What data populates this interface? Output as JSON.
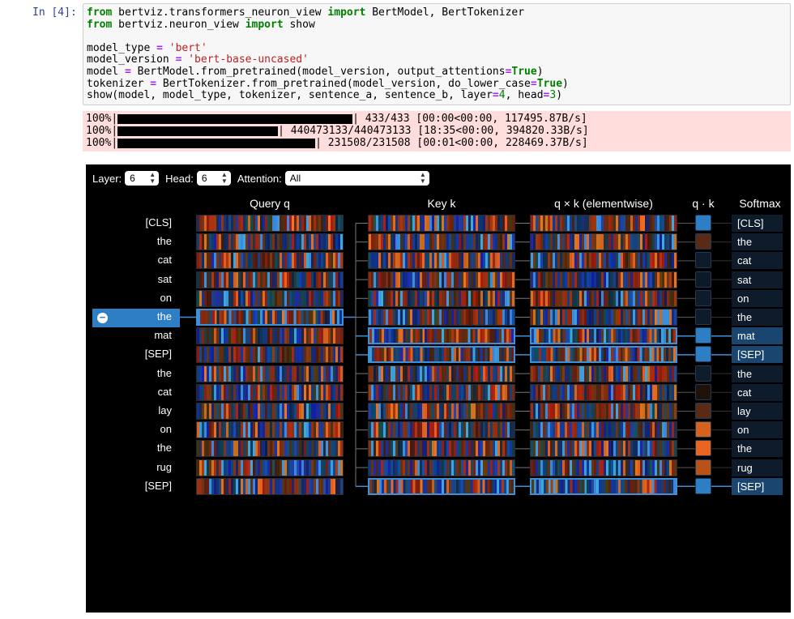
{
  "cell": {
    "prompt": "In [4]:",
    "code": [
      [
        {
          "t": "from",
          "c": "kw"
        },
        {
          "t": " bertviz.transformers_neuron_view "
        },
        {
          "t": "import",
          "c": "kw"
        },
        {
          "t": " BertModel, BertTokenizer"
        }
      ],
      [
        {
          "t": "from",
          "c": "kw"
        },
        {
          "t": " bertviz.neuron_view "
        },
        {
          "t": "import",
          "c": "kw"
        },
        {
          "t": " show"
        }
      ],
      [
        {
          "t": ""
        }
      ],
      [
        {
          "t": "model_type "
        },
        {
          "t": "=",
          "c": "op"
        },
        {
          "t": " "
        },
        {
          "t": "'bert'",
          "c": "str"
        }
      ],
      [
        {
          "t": "model_version "
        },
        {
          "t": "=",
          "c": "op"
        },
        {
          "t": " "
        },
        {
          "t": "'bert-base-uncased'",
          "c": "str"
        }
      ],
      [
        {
          "t": "model "
        },
        {
          "t": "=",
          "c": "op"
        },
        {
          "t": " BertModel.from_pretrained(model_version, output_attentions"
        },
        {
          "t": "=",
          "c": "op"
        },
        {
          "t": "True",
          "c": "kw"
        },
        {
          "t": ")"
        }
      ],
      [
        {
          "t": "tokenizer "
        },
        {
          "t": "=",
          "c": "op"
        },
        {
          "t": " BertTokenizer.from_pretrained(model_version, do_lower_case"
        },
        {
          "t": "=",
          "c": "op"
        },
        {
          "t": "True",
          "c": "kw"
        },
        {
          "t": ")"
        }
      ],
      [
        {
          "t": "show(model, model_type, tokenizer, sentence_a, sentence_b, layer"
        },
        {
          "t": "=",
          "c": "op"
        },
        {
          "t": "4",
          "c": "num"
        },
        {
          "t": ", head"
        },
        {
          "t": "=",
          "c": "op"
        },
        {
          "t": "3",
          "c": "num"
        },
        {
          "t": ")"
        }
      ]
    ]
  },
  "progress": [
    {
      "pct": "100%",
      "progress": 1.0,
      "stats": "| 433/433 [00:00<00:00, 117495.87B/s]"
    },
    {
      "pct": "100%",
      "progress": 1.0,
      "stats": "| 440473133/440473133 [18:35<00:00, 394820.33B/s]"
    },
    {
      "pct": "100%",
      "progress": 1.0,
      "stats": "| 231508/231508 [00:01<00:00, 228469.37B/s]"
    }
  ],
  "controls": {
    "layer_label": "Layer:",
    "layer_value": "6",
    "head_label": "Head:",
    "head_value": "6",
    "attention_label": "Attention:",
    "attention_value": "All"
  },
  "headers": {
    "query": "Query q",
    "key": "Key k",
    "product": "q × k (elementwise)",
    "dot": "q · k",
    "softmax": "Softmax"
  },
  "tokens": [
    "[CLS]",
    "the",
    "cat",
    "sat",
    "on",
    "the",
    "mat",
    "[SEP]",
    "the",
    "cat",
    "lay",
    "on",
    "the",
    "rug",
    "[SEP]"
  ],
  "selected_index": 5,
  "softmax_highlight": [
    6,
    7,
    14
  ],
  "scores": [
    "#2e7ec6",
    "#5a2a14",
    "#0d1b2a",
    "#0c1a28",
    "#0d1b2a",
    "#0d1b2a",
    "#2e7ec6",
    "#2e7ec6",
    "#0e1c2c",
    "#1e120a",
    "#5a2a14",
    "#d9611e",
    "#e8641f",
    "#b85218",
    "#2e7ec6"
  ],
  "colors": {
    "blue": "#3d8fd8",
    "orange": "#e06a24",
    "highlight": "#2e7ec6"
  }
}
